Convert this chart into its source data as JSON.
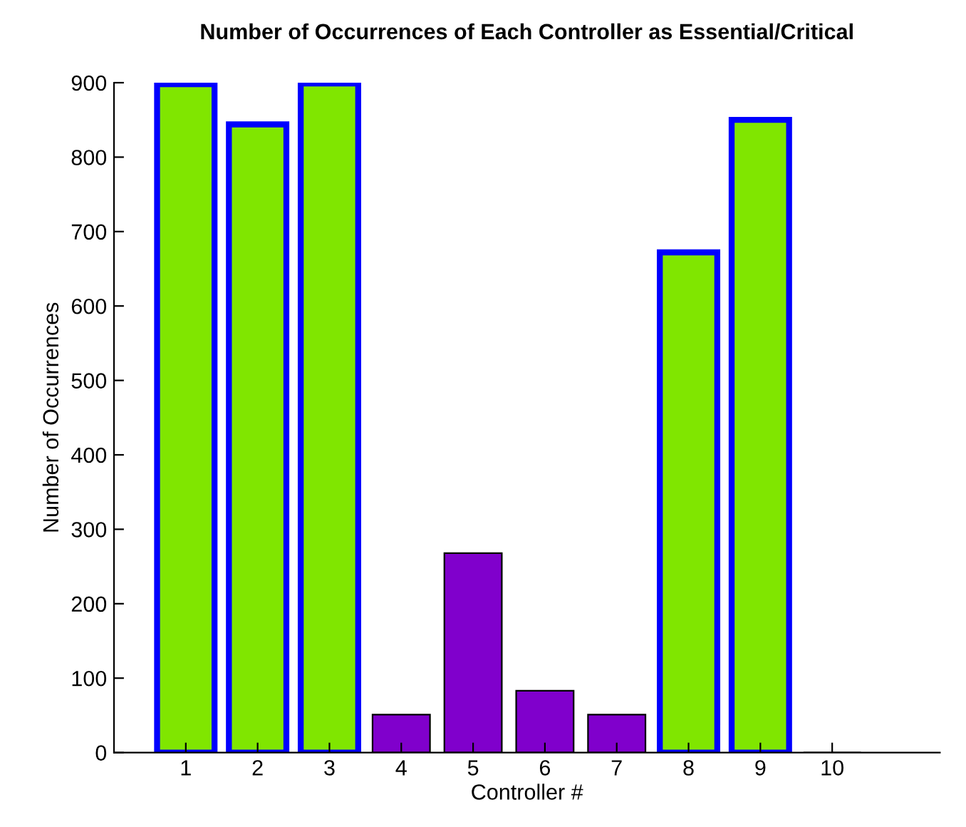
{
  "chart_data": {
    "type": "bar",
    "title": "Number of Occurrences of Each Controller as Essential/Critical",
    "xlabel": "Controller #",
    "ylabel": "Number of Occurrences",
    "x": [
      1,
      2,
      3,
      4,
      5,
      6,
      7,
      8,
      9,
      10
    ],
    "series": [
      {
        "color": "#80e600",
        "values": [
          898,
          844,
          899,
          null,
          null,
          null,
          null,
          672,
          850,
          null
        ]
      },
      {
        "color": "#8000cc",
        "values": [
          null,
          null,
          null,
          51,
          268,
          83,
          51,
          null,
          null,
          0
        ]
      }
    ],
    "xlim": [
      0,
      11.5
    ],
    "xticks": [
      1,
      2,
      3,
      4,
      5,
      6,
      7,
      8,
      9,
      10
    ],
    "ylim": [
      0,
      900
    ],
    "yticks": [
      0,
      100,
      200,
      300,
      400,
      500,
      600,
      700,
      800,
      900
    ],
    "grid": false,
    "legend": false
  }
}
